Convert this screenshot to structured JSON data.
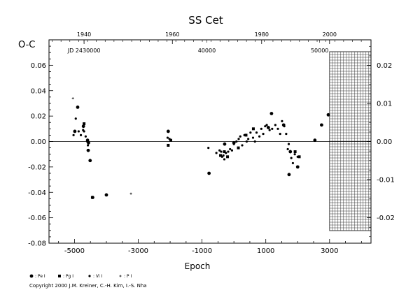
{
  "chart_data": {
    "type": "scatter",
    "title": "SS Cet",
    "ylabel": "O-C",
    "xlabel": "Epoch",
    "xlim": [
      -5800,
      4300
    ],
    "ylim": [
      -0.08,
      0.08
    ],
    "right_ylim": [
      -0.0267,
      0.0267
    ],
    "x_ticks": [
      -5000,
      -3000,
      -1000,
      1000,
      3000
    ],
    "y_ticks": [
      -0.08,
      -0.06,
      -0.04,
      -0.02,
      0.0,
      0.02,
      0.04,
      0.06
    ],
    "y_tick_labels": [
      "-0.08",
      "-0.06",
      "-0.04",
      "-0.02",
      "0.00",
      "0.02",
      "0.04",
      "0.06"
    ],
    "right_y_ticks": [
      -0.02,
      -0.01,
      0.0,
      0.01,
      0.02
    ],
    "right_y_tick_labels": [
      "-0.02",
      "-0.01",
      "0.00",
      "0.01",
      "0.02"
    ],
    "top_year_ticks": [
      {
        "label": "1940",
        "epoch": -4700
      },
      {
        "label": "1960",
        "epoch": -1930
      },
      {
        "label": "1980",
        "epoch": 870
      },
      {
        "label": "2000",
        "epoch": 3000
      }
    ],
    "jd_labels": [
      {
        "label": "JD 2430000",
        "epoch": -4700
      },
      {
        "label": "40000",
        "epoch": -850
      },
      {
        "label": "50000",
        "epoch": 2690
      }
    ],
    "zero_line": true,
    "hatched_region_x": [
      3000,
      4300
    ],
    "series": [
      {
        "name": "Pe I",
        "marker": "circle-large",
        "x": [
          -4990,
          -4900,
          -4720,
          -4590,
          -4570,
          -4560,
          -4510,
          -4430,
          -4000,
          -2060,
          -780,
          -290,
          0,
          1080,
          1180,
          1560,
          1730,
          1770,
          2000,
          2540,
          2750,
          2960
        ],
        "y": [
          0.008,
          0.027,
          0.012,
          0.001,
          -0.007,
          -0.001,
          -0.015,
          -0.044,
          -0.042,
          0.008,
          -0.025,
          -0.002,
          -0.001,
          0.011,
          0.022,
          0.013,
          -0.026,
          -0.008,
          -0.02,
          0.001,
          0.013,
          0.021
        ]
      },
      {
        "name": "Pg I",
        "marker": "square",
        "x": [
          -4700,
          -4440,
          -2060,
          -1980,
          -420,
          -300,
          -200,
          140,
          380,
          610,
          1920,
          2050
        ],
        "y": [
          0.014,
          -0.044,
          -0.003,
          0.001,
          -0.011,
          -0.008,
          -0.012,
          -0.005,
          0.005,
          0.01,
          -0.008,
          -0.012
        ]
      },
      {
        "name": "Vi I",
        "marker": "circle",
        "x": [
          -5030,
          -4960,
          -4870,
          -4800,
          -4730,
          -4700,
          -4650,
          -4600,
          -4580,
          -2080,
          -2020,
          -800,
          -550,
          -450,
          -400,
          -370,
          -330,
          -300,
          -250,
          -180,
          -120,
          -60,
          0,
          80,
          150,
          200,
          260,
          330,
          400,
          450,
          520,
          600,
          660,
          710,
          800,
          860,
          920,
          980,
          1030,
          1120,
          1200,
          1300,
          1380,
          1450,
          1510,
          1580,
          1640,
          1690,
          1720,
          1800,
          1850,
          1910,
          2000
        ],
        "y": [
          0.005,
          0.018,
          0.008,
          0.005,
          0.009,
          0.008,
          0.004,
          0.0,
          -0.003,
          0.003,
          0.002,
          -0.005,
          -0.009,
          -0.007,
          -0.008,
          -0.012,
          -0.011,
          -0.014,
          -0.009,
          -0.008,
          -0.006,
          -0.007,
          -0.002,
          0.0,
          0.002,
          0.004,
          -0.003,
          0.005,
          0.0,
          0.002,
          0.007,
          0.003,
          0.0,
          0.007,
          0.004,
          0.01,
          0.006,
          0.012,
          0.013,
          0.009,
          0.01,
          0.013,
          0.01,
          0.006,
          0.016,
          0.012,
          0.006,
          -0.006,
          -0.002,
          -0.013,
          -0.017,
          -0.01,
          -0.012
        ]
      },
      {
        "name": "P I",
        "marker": "plus",
        "x": [
          -5050,
          -3230
        ],
        "y": [
          0.034,
          -0.041
        ]
      }
    ],
    "legend": [
      {
        "symbol": "circle-large",
        "label": ": Pe I"
      },
      {
        "symbol": "square",
        "label": ": Pg I"
      },
      {
        "symbol": "circle",
        "label": ": Vi I"
      },
      {
        "symbol": "plus",
        "label": ": P I"
      }
    ]
  },
  "footer": {
    "copyright": "Copyright 2000 J.M. Kreiner, C.-H. Kim, I.-S. Nha"
  }
}
